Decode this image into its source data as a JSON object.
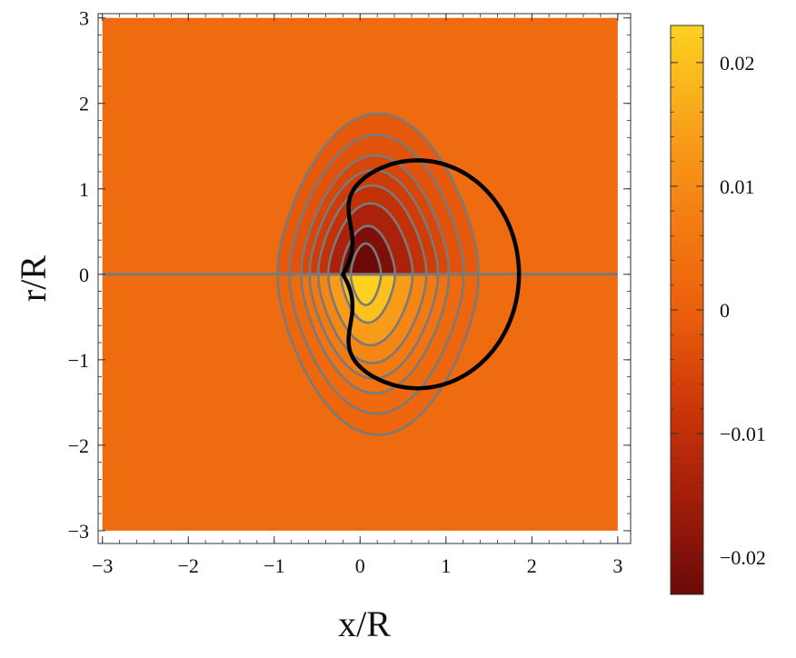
{
  "chart_data": {
    "type": "heatmap",
    "title": "",
    "xlabel": "x/R",
    "ylabel": "r/R",
    "xlim": [
      -3.05,
      3.15
    ],
    "ylim": [
      -3.15,
      3.05
    ],
    "x_ticks": [
      "−3",
      "−2",
      "−1",
      "0",
      "1",
      "2",
      "3"
    ],
    "x_tick_values": [
      -3,
      -2,
      -1,
      0,
      1,
      2,
      3
    ],
    "y_ticks": [
      "3",
      "2",
      "1",
      "0",
      "−1",
      "−2",
      "−3"
    ],
    "y_tick_values": [
      3,
      2,
      1,
      0,
      -1,
      -2,
      -3
    ],
    "colorbar": {
      "range": [
        -0.023,
        0.023
      ],
      "ticks": [
        "0.02",
        "0.01",
        "0",
        "−0.01",
        "−0.02"
      ],
      "tick_values": [
        0.02,
        0.01,
        0,
        -0.01,
        -0.02
      ],
      "colors": [
        "#6b0a08",
        "#a01c0a",
        "#cc3708",
        "#ec600c",
        "#f47d12",
        "#f8a41a",
        "#fcd120"
      ]
    },
    "data_extent": {
      "x": [
        -3,
        3
      ],
      "r": [
        -3,
        3
      ]
    },
    "contour_color": "#7a7a7a",
    "contour_levels": [
      -0.02,
      -0.015,
      -0.01,
      -0.007,
      -0.005,
      -0.0035,
      -0.002,
      -0.001,
      0,
      0.001,
      0.002,
      0.0035,
      0.005,
      0.007,
      0.01,
      0.015,
      0.02
    ],
    "curve": {
      "description_color": "#000000",
      "circle_center": [
        0.67,
        0
      ],
      "circle_radius": 1.18,
      "cusp_at": [
        -0.2,
        0
      ]
    }
  }
}
